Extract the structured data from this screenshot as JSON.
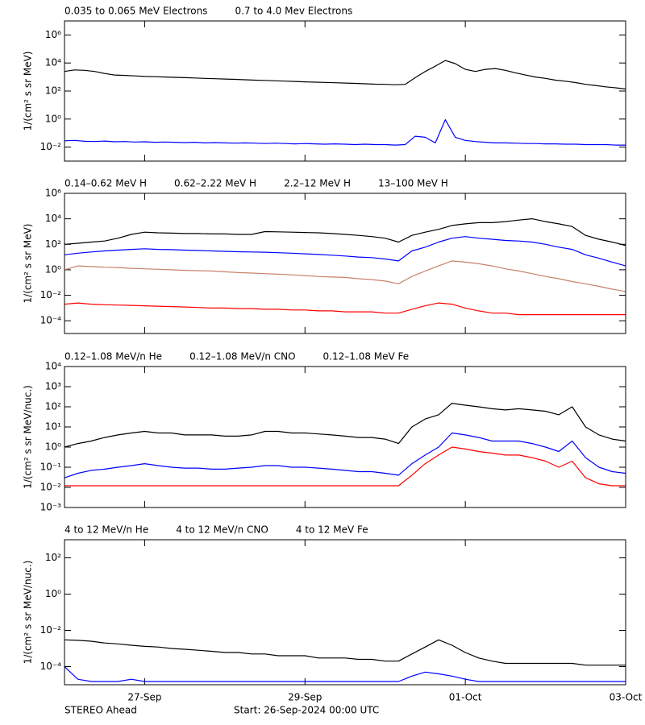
{
  "chart_data": [
    {
      "type": "line",
      "log_y": true,
      "y_label": "1/(cm² s sr MeV)",
      "xlim": [
        0,
        168
      ],
      "ylim": [
        0.001,
        10000000
      ],
      "yticks": [
        {
          "value": 1000000,
          "label": "10⁶"
        },
        {
          "value": 10000,
          "label": "10⁴"
        },
        {
          "value": 100,
          "label": "10²"
        },
        {
          "value": 1,
          "label": "10⁰"
        },
        {
          "value": 0.01,
          "label": "10⁻²"
        }
      ],
      "x": [
        0,
        3,
        6,
        9,
        12,
        15,
        18,
        21,
        24,
        27,
        30,
        33,
        36,
        39,
        42,
        45,
        48,
        51,
        54,
        57,
        60,
        63,
        66,
        69,
        72,
        75,
        78,
        81,
        84,
        87,
        90,
        93,
        96,
        99,
        102,
        105,
        108,
        111,
        114,
        117,
        120,
        123,
        126,
        129,
        132,
        135,
        138,
        141,
        144,
        147,
        150,
        153,
        156,
        159,
        162,
        165,
        168
      ],
      "series": [
        {
          "name": "0.035 to 0.065 MeV Electrons",
          "color": "#000000",
          "values": [
            2500,
            3200,
            3000,
            2500,
            1800,
            1400,
            1300,
            1200,
            1100,
            1050,
            1000,
            950,
            900,
            850,
            800,
            760,
            720,
            680,
            640,
            600,
            570,
            540,
            510,
            480,
            450,
            430,
            410,
            390,
            370,
            350,
            330,
            310,
            300,
            280,
            300,
            900,
            2500,
            6000,
            15000,
            9000,
            3500,
            2500,
            3500,
            4000,
            3000,
            2000,
            1400,
            1000,
            800,
            600,
            500,
            400,
            300,
            250,
            200,
            170,
            140
          ]
        },
        {
          "name": "0.7 to 4.0 Mev Electrons",
          "color": "#0000ff",
          "values": [
            0.028,
            0.03,
            0.026,
            0.025,
            0.027,
            0.024,
            0.025,
            0.023,
            0.024,
            0.022,
            0.023,
            0.022,
            0.021,
            0.022,
            0.02,
            0.021,
            0.02,
            0.019,
            0.02,
            0.019,
            0.018,
            0.019,
            0.018,
            0.017,
            0.018,
            0.017,
            0.016,
            0.017,
            0.016,
            0.015,
            0.016,
            0.015,
            0.015,
            0.014,
            0.015,
            0.06,
            0.05,
            0.02,
            0.9,
            0.05,
            0.03,
            0.025,
            0.022,
            0.02,
            0.02,
            0.019,
            0.018,
            0.018,
            0.017,
            0.017,
            0.016,
            0.016,
            0.015,
            0.015,
            0.015,
            0.014,
            0.014
          ]
        }
      ]
    },
    {
      "type": "line",
      "log_y": true,
      "y_label": "1/(cm² s sr MeV)",
      "xlim": [
        0,
        168
      ],
      "ylim": [
        1e-05,
        1000000
      ],
      "yticks": [
        {
          "value": 1000000,
          "label": "10⁶"
        },
        {
          "value": 10000,
          "label": "10⁴"
        },
        {
          "value": 100,
          "label": "10²"
        },
        {
          "value": 1,
          "label": "10⁰"
        },
        {
          "value": 0.01,
          "label": "10⁻²"
        },
        {
          "value": 0.0001,
          "label": "10⁻⁴"
        }
      ],
      "x": [
        0,
        4,
        8,
        12,
        16,
        20,
        24,
        28,
        32,
        36,
        40,
        44,
        48,
        52,
        56,
        60,
        64,
        68,
        72,
        76,
        80,
        84,
        88,
        92,
        96,
        100,
        104,
        108,
        112,
        116,
        120,
        124,
        128,
        132,
        136,
        140,
        144,
        148,
        152,
        156,
        160,
        164,
        168
      ],
      "series": [
        {
          "name": "0.14–0.62 MeV H",
          "color": "#000000",
          "values": [
            100,
            120,
            150,
            180,
            300,
            600,
            900,
            800,
            750,
            700,
            700,
            650,
            650,
            600,
            600,
            1000,
            950,
            900,
            850,
            800,
            700,
            600,
            500,
            400,
            300,
            150,
            500,
            900,
            1500,
            3000,
            4000,
            5000,
            5000,
            6000,
            8000,
            10000,
            6000,
            4000,
            2500,
            500,
            250,
            150,
            80
          ]
        },
        {
          "name": "0.62–2.22 MeV H",
          "color": "#0000ff",
          "values": [
            15,
            20,
            25,
            30,
            35,
            40,
            45,
            40,
            38,
            35,
            33,
            30,
            28,
            26,
            25,
            24,
            22,
            20,
            18,
            16,
            14,
            12,
            10,
            9,
            7,
            5,
            30,
            60,
            150,
            300,
            400,
            300,
            250,
            200,
            180,
            150,
            100,
            60,
            40,
            15,
            8,
            4,
            2
          ]
        },
        {
          "name": "2.2–12 MeV H",
          "color": "#c8826a",
          "values": [
            1,
            2,
            1.8,
            1.6,
            1.5,
            1.3,
            1.2,
            1.1,
            1,
            0.9,
            0.85,
            0.8,
            0.7,
            0.6,
            0.55,
            0.5,
            0.45,
            0.4,
            0.35,
            0.3,
            0.27,
            0.25,
            0.2,
            0.17,
            0.13,
            0.08,
            0.3,
            0.8,
            2,
            5,
            4,
            3,
            2,
            1.2,
            0.8,
            0.5,
            0.3,
            0.2,
            0.12,
            0.08,
            0.05,
            0.03,
            0.02
          ]
        },
        {
          "name": "13–100 MeV H",
          "color": "#ff0000",
          "values": [
            0.002,
            0.0025,
            0.002,
            0.0018,
            0.0017,
            0.0016,
            0.0015,
            0.0014,
            0.0013,
            0.0012,
            0.0011,
            0.001,
            0.001,
            0.0009,
            0.0009,
            0.0008,
            0.0008,
            0.0007,
            0.0007,
            0.0006,
            0.0006,
            0.0005,
            0.0005,
            0.0005,
            0.0004,
            0.0004,
            0.0008,
            0.0015,
            0.0025,
            0.002,
            0.001,
            0.0006,
            0.0004,
            0.0004,
            0.0003,
            0.0003,
            0.0003,
            0.0003,
            0.0003,
            0.0003,
            0.0003,
            0.0003,
            0.0003
          ]
        }
      ]
    },
    {
      "type": "line",
      "log_y": true,
      "y_label": "1/(cm² s sr MeV/nuc.)",
      "xlim": [
        0,
        168
      ],
      "ylim": [
        0.001,
        10000
      ],
      "yticks": [
        {
          "value": 10000,
          "label": "10⁴"
        },
        {
          "value": 1000,
          "label": "10³"
        },
        {
          "value": 100,
          "label": "10²"
        },
        {
          "value": 10,
          "label": "10¹"
        },
        {
          "value": 1,
          "label": "10⁰"
        },
        {
          "value": 0.1,
          "label": "10⁻¹"
        },
        {
          "value": 0.01,
          "label": "10⁻²"
        },
        {
          "value": 0.001,
          "label": "10⁻³"
        }
      ],
      "x": [
        0,
        4,
        8,
        12,
        16,
        20,
        24,
        28,
        32,
        36,
        40,
        44,
        48,
        52,
        56,
        60,
        64,
        68,
        72,
        76,
        80,
        84,
        88,
        92,
        96,
        100,
        104,
        108,
        112,
        116,
        120,
        124,
        128,
        132,
        136,
        140,
        144,
        148,
        152,
        156,
        160,
        164,
        168
      ],
      "series": [
        {
          "name": "0.12–1.08 MeV/n He",
          "color": "#000000",
          "values": [
            1,
            1.5,
            2,
            3,
            4,
            5,
            6,
            5,
            5,
            4,
            4,
            4,
            3.5,
            3.5,
            4,
            6,
            6,
            5,
            5,
            4.5,
            4,
            3.5,
            3,
            3,
            2.5,
            1.5,
            10,
            25,
            40,
            150,
            120,
            100,
            80,
            70,
            80,
            70,
            60,
            40,
            100,
            10,
            4,
            2.5,
            2
          ]
        },
        {
          "name": "0.12–1.08 MeV/n CNO",
          "color": "#0000ff",
          "values": [
            0.03,
            0.05,
            0.07,
            0.08,
            0.1,
            0.12,
            0.15,
            0.12,
            0.1,
            0.09,
            0.09,
            0.08,
            0.08,
            0.09,
            0.1,
            0.12,
            0.12,
            0.1,
            0.1,
            0.09,
            0.08,
            0.07,
            0.06,
            0.06,
            0.05,
            0.04,
            0.15,
            0.4,
            1,
            5,
            4,
            3,
            2,
            2,
            2,
            1.5,
            1,
            0.6,
            2,
            0.3,
            0.1,
            0.06,
            0.05
          ]
        },
        {
          "name": "0.12–1.08 MeV Fe",
          "color": "#ff0000",
          "values": [
            0.012,
            0.012,
            0.012,
            0.012,
            0.012,
            0.012,
            0.012,
            0.012,
            0.012,
            0.012,
            0.012,
            0.012,
            0.012,
            0.012,
            0.012,
            0.012,
            0.012,
            0.012,
            0.012,
            0.012,
            0.012,
            0.012,
            0.012,
            0.012,
            0.012,
            0.012,
            0.04,
            0.15,
            0.4,
            1,
            0.8,
            0.6,
            0.5,
            0.4,
            0.4,
            0.3,
            0.2,
            0.1,
            0.2,
            0.03,
            0.015,
            0.012,
            0.012
          ]
        }
      ]
    },
    {
      "type": "line",
      "log_y": true,
      "y_label": "1/(cm² s sr MeV/nuc.)",
      "xlim": [
        0,
        168
      ],
      "ylim": [
        1e-05,
        1000
      ],
      "yticks": [
        {
          "value": 100,
          "label": "10²"
        },
        {
          "value": 1,
          "label": "10⁰"
        },
        {
          "value": 0.01,
          "label": "10⁻²"
        },
        {
          "value": 0.0001,
          "label": "10⁻⁴"
        }
      ],
      "xticks": [
        {
          "value": 24,
          "label": "27-Sep"
        },
        {
          "value": 72,
          "label": "29-Sep"
        },
        {
          "value": 120,
          "label": "01-Oct"
        },
        {
          "value": 168,
          "label": "03-Oct"
        }
      ],
      "x": [
        0,
        4,
        8,
        12,
        16,
        20,
        24,
        28,
        32,
        36,
        40,
        44,
        48,
        52,
        56,
        60,
        64,
        68,
        72,
        76,
        80,
        84,
        88,
        92,
        96,
        100,
        104,
        108,
        112,
        116,
        120,
        124,
        128,
        132,
        136,
        140,
        144,
        148,
        152,
        156,
        160,
        164,
        168
      ],
      "series": [
        {
          "name": "4 to 12 MeV/n He",
          "color": "#000000",
          "values": [
            0.003,
            0.0028,
            0.0025,
            0.002,
            0.0018,
            0.0015,
            0.0013,
            0.0012,
            0.001,
            0.0009,
            0.0008,
            0.0007,
            0.0006,
            0.0006,
            0.0005,
            0.0005,
            0.0004,
            0.0004,
            0.0004,
            0.0003,
            0.0003,
            0.0003,
            0.00025,
            0.00025,
            0.0002,
            0.0002,
            0.0005,
            0.0012,
            0.003,
            0.0015,
            0.0006,
            0.0003,
            0.0002,
            0.00015,
            0.00015,
            0.00015,
            0.00015,
            0.00015,
            0.00015,
            0.00012,
            0.00012,
            0.00012,
            0.00012
          ]
        },
        {
          "name": "4 to 12 MeV/n CNO",
          "color": "#0000ff",
          "values": [
            0.0001,
            2e-05,
            1.5e-05,
            1.5e-05,
            1.5e-05,
            2e-05,
            1.5e-05,
            1.5e-05,
            1.5e-05,
            1.5e-05,
            1.5e-05,
            1.5e-05,
            1.5e-05,
            1.5e-05,
            1.5e-05,
            1.5e-05,
            1.5e-05,
            1.5e-05,
            1.5e-05,
            1.5e-05,
            1.5e-05,
            1.5e-05,
            1.5e-05,
            1.5e-05,
            1.5e-05,
            1.5e-05,
            3e-05,
            5e-05,
            4e-05,
            3e-05,
            2e-05,
            1.5e-05,
            1.5e-05,
            1.5e-05,
            1.5e-05,
            1.5e-05,
            1.5e-05,
            1.5e-05,
            1.5e-05,
            1.5e-05,
            1.5e-05,
            1.5e-05,
            1.5e-05
          ]
        },
        {
          "name": "4 to 12 MeV Fe",
          "color": "#ff0000",
          "values": [
            null,
            null,
            null,
            null,
            null,
            null,
            null,
            null,
            null,
            null,
            null,
            null,
            null,
            null,
            null,
            null,
            null,
            null,
            null,
            null,
            null,
            null,
            null,
            null,
            null,
            null,
            null,
            null,
            null,
            null,
            null,
            null,
            null,
            null,
            null,
            null,
            null,
            null,
            null,
            null,
            null,
            null,
            null
          ]
        }
      ]
    }
  ],
  "footer": {
    "mission": "STEREO Ahead",
    "start": "Start: 26-Sep-2024 00:00 UTC"
  }
}
